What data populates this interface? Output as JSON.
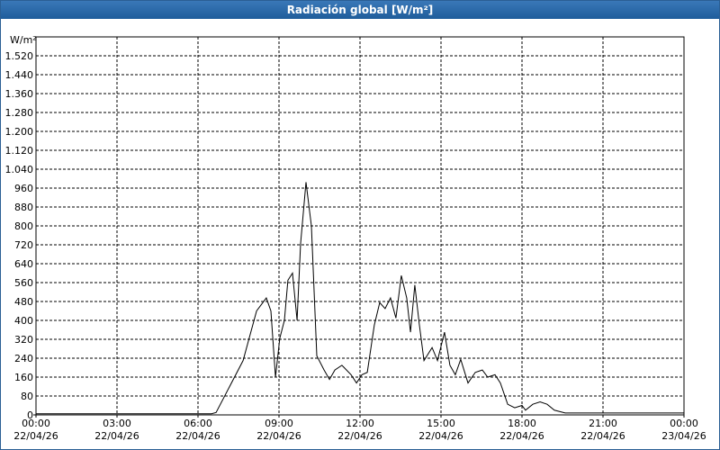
{
  "chart_data": {
    "type": "line",
    "title": "Radiación global [W/m²]",
    "y_unit": "W/m²",
    "xlim": [
      0,
      24
    ],
    "xticks": [
      {
        "value": 0,
        "label": "00:00"
      },
      {
        "value": 3,
        "label": "03:00"
      },
      {
        "value": 6,
        "label": "06:00"
      },
      {
        "value": 9,
        "label": "09:00"
      },
      {
        "value": 12,
        "label": "12:00"
      },
      {
        "value": 15,
        "label": "15:00"
      },
      {
        "value": 18,
        "label": "18:00"
      },
      {
        "value": 21,
        "label": "21:00"
      },
      {
        "value": 24,
        "label": "00:00"
      }
    ],
    "xtick_dates": [
      "22/04/26",
      "22/04/26",
      "22/04/26",
      "22/04/26",
      "22/04/26",
      "22/04/26",
      "22/04/26",
      "22/04/26",
      "23/04/26"
    ],
    "ylim": [
      0,
      1600
    ],
    "yticks": [
      0,
      80,
      160,
      240,
      320,
      400,
      480,
      560,
      640,
      720,
      800,
      880,
      960,
      {
        "value": 1040,
        "label": "1.040"
      },
      {
        "value": 1120,
        "label": "1.120"
      },
      {
        "value": 1200,
        "label": "1.200"
      },
      {
        "value": 1280,
        "label": "1.280"
      },
      {
        "value": 1360,
        "label": "1.360"
      },
      {
        "value": 1440,
        "label": "1.440"
      },
      {
        "value": 1520,
        "label": "1.520"
      }
    ],
    "grid": true,
    "series": [
      {
        "name": "Radiación global",
        "color": "#000000",
        "x": [
          0,
          6.5,
          6.67,
          7.67,
          8.17,
          8.53,
          8.7,
          8.87,
          9.03,
          9.2,
          9.33,
          9.5,
          9.67,
          9.8,
          10.0,
          10.2,
          10.4,
          10.67,
          10.87,
          11.07,
          11.33,
          11.67,
          11.87,
          12.07,
          12.27,
          12.53,
          12.73,
          12.93,
          13.13,
          13.33,
          13.53,
          13.73,
          13.87,
          14.03,
          14.2,
          14.37,
          14.67,
          14.87,
          15.13,
          15.33,
          15.53,
          15.73,
          16.0,
          16.27,
          16.53,
          16.73,
          17.0,
          17.2,
          17.47,
          17.73,
          18.0,
          18.13,
          18.4,
          18.67,
          18.93,
          19.2,
          19.6,
          24
        ],
        "values": [
          5,
          5,
          10,
          230,
          440,
          495,
          440,
          160,
          325,
          400,
          570,
          600,
          400,
          725,
          985,
          800,
          250,
          190,
          150,
          190,
          210,
          170,
          135,
          170,
          180,
          380,
          475,
          450,
          495,
          410,
          590,
          495,
          350,
          550,
          380,
          230,
          285,
          230,
          350,
          210,
          170,
          235,
          135,
          180,
          190,
          160,
          170,
          135,
          45,
          30,
          40,
          20,
          45,
          55,
          45,
          20,
          8,
          8
        ]
      }
    ]
  }
}
